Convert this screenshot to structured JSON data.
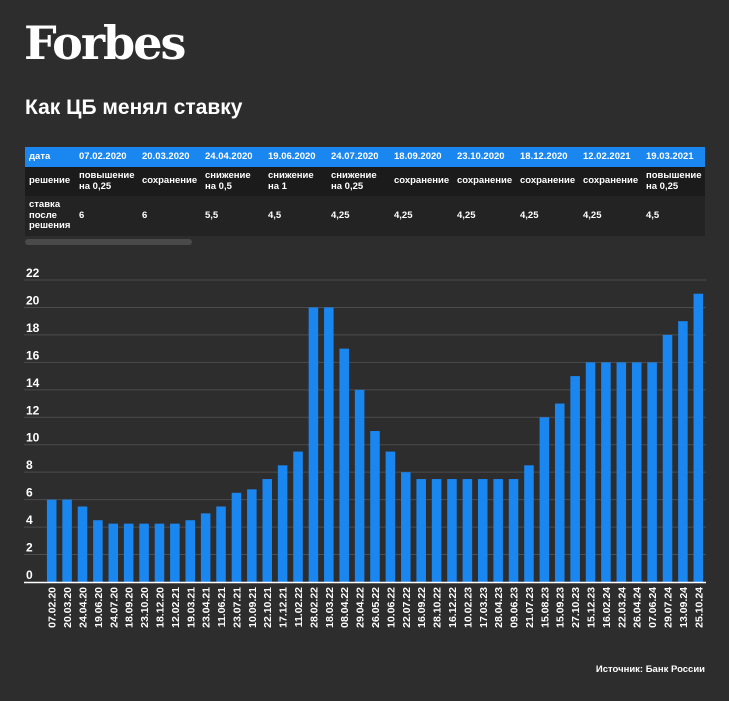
{
  "brand": "Forbes",
  "title": "Как ЦБ менял ставку",
  "table": {
    "row_labels": [
      "дата",
      "решение",
      "ставка после решения"
    ],
    "columns": [
      {
        "date": "07.02.2020",
        "decision": "повышение на 0,25",
        "rate": "6"
      },
      {
        "date": "20.03.2020",
        "decision": "сохранение",
        "rate": "6"
      },
      {
        "date": "24.04.2020",
        "decision": "снижение на 0,5",
        "rate": "5,5"
      },
      {
        "date": "19.06.2020",
        "decision": "снижение на 1",
        "rate": "4,5"
      },
      {
        "date": "24.07.2020",
        "decision": "снижение на 0,25",
        "rate": "4,25"
      },
      {
        "date": "18.09.2020",
        "decision": "сохранение",
        "rate": "4,25"
      },
      {
        "date": "23.10.2020",
        "decision": "сохранение",
        "rate": "4,25"
      },
      {
        "date": "18.12.2020",
        "decision": "сохранение",
        "rate": "4,25"
      },
      {
        "date": "12.02.2021",
        "decision": "сохранение",
        "rate": "4,25"
      },
      {
        "date": "19.03.2021",
        "decision": "повышение на 0,25",
        "rate": "4,5"
      }
    ]
  },
  "source": "Источник: Банк России",
  "colors": {
    "bar": "#1a86f0",
    "background": "#2d2d2d",
    "grid": "#4d4d4d"
  },
  "chart_data": {
    "type": "bar",
    "title": "",
    "xlabel": "",
    "ylabel": "",
    "ylim": [
      0,
      22
    ],
    "yticks": [
      0,
      2,
      4,
      6,
      8,
      10,
      12,
      14,
      16,
      18,
      20,
      22
    ],
    "grid": true,
    "categories": [
      "07.02.20",
      "20.03.20",
      "24.04.20",
      "19.06.20",
      "24.07.20",
      "18.09.20",
      "23.10.20",
      "18.12.20",
      "12.02.21",
      "19.03.21",
      "23.04.21",
      "11.06.21",
      "23.07.21",
      "10.09.21",
      "22.10.21",
      "17.12.21",
      "11.02.22",
      "28.02.22",
      "18.03.22",
      "08.04.22",
      "29.04.22",
      "26.05.22",
      "10.06.22",
      "22.07.22",
      "16.09.22",
      "28.10.22",
      "16.12.22",
      "10.02.23",
      "17.03.23",
      "28.04.23",
      "09.06.23",
      "21.07.23",
      "15.08.23",
      "15.09.23",
      "27.10.23",
      "15.12.23",
      "16.02.24",
      "22.03.24",
      "26.04.24",
      "07.06.24",
      "29.07.24",
      "13.09.24",
      "25.10.24"
    ],
    "values": [
      6,
      6,
      5.5,
      4.5,
      4.25,
      4.25,
      4.25,
      4.25,
      4.25,
      4.5,
      5,
      5.5,
      6.5,
      6.75,
      7.5,
      8.5,
      9.5,
      20,
      20,
      17,
      14,
      11,
      9.5,
      8,
      7.5,
      7.5,
      7.5,
      7.5,
      7.5,
      7.5,
      7.5,
      8.5,
      12,
      13,
      15,
      16,
      16,
      16,
      16,
      16,
      18,
      19,
      21
    ]
  }
}
